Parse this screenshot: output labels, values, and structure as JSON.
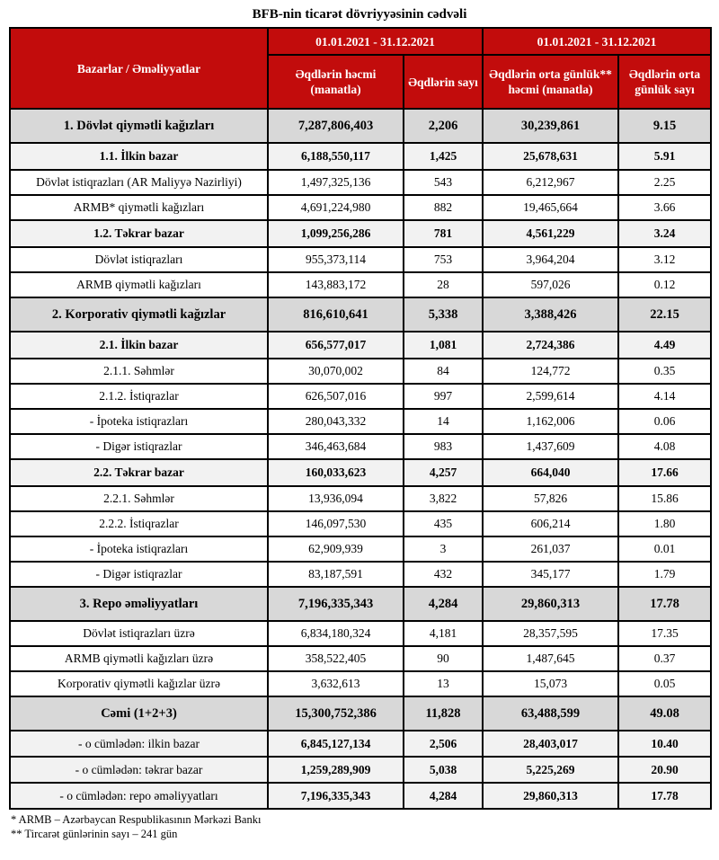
{
  "title": "BFB-nin ticarət dövriyyəsinin cədvəli",
  "colors": {
    "header_red": "#c20c0c",
    "section_row_gray": "#d8d8d8",
    "sub_row_gray": "#f2f2f2",
    "border_black": "#000000"
  },
  "table": {
    "header": {
      "col1": "Bazarlar / Əməliyyatlar",
      "period1": "01.01.2021 - 31.12.2021",
      "period2": "01.01.2021 - 31.12.2021",
      "subcols": [
        "Əqdlərin həcmi (manatla)",
        "Əqdlərin sayı",
        "Əqdlərin orta günlük** həcmi (manatla)",
        "Əqdlərin orta günlük sayı"
      ]
    },
    "rows": [
      {
        "label": "1. Dövlət qiymətli kağızları",
        "level": "section",
        "values": [
          "7,287,806,403",
          "2,206",
          "30,239,861",
          "9.15"
        ]
      },
      {
        "label": "1.1. İlkin bazar",
        "level": "sub",
        "values": [
          "6,188,550,117",
          "1,425",
          "25,678,631",
          "5.91"
        ]
      },
      {
        "label": "Dövlət istiqrazları (AR Maliyyə Nazirliyi)",
        "level": "detail",
        "values": [
          "1,497,325,136",
          "543",
          "6,212,967",
          "2.25"
        ]
      },
      {
        "label": "ARMB* qiymətli kağızları",
        "level": "detail",
        "values": [
          "4,691,224,980",
          "882",
          "19,465,664",
          "3.66"
        ]
      },
      {
        "label": "1.2. Təkrar bazar",
        "level": "sub",
        "values": [
          "1,099,256,286",
          "781",
          "4,561,229",
          "3.24"
        ]
      },
      {
        "label": "Dövlət istiqrazları",
        "level": "detail",
        "values": [
          "955,373,114",
          "753",
          "3,964,204",
          "3.12"
        ]
      },
      {
        "label": "ARMB qiymətli kağızları",
        "level": "detail",
        "values": [
          "143,883,172",
          "28",
          "597,026",
          "0.12"
        ]
      },
      {
        "label": "2. Korporativ qiymətli kağızlar",
        "level": "section",
        "values": [
          "816,610,641",
          "5,338",
          "3,388,426",
          "22.15"
        ]
      },
      {
        "label": "2.1. İlkin bazar",
        "level": "sub",
        "values": [
          "656,577,017",
          "1,081",
          "2,724,386",
          "4.49"
        ]
      },
      {
        "label": "2.1.1. Səhmlər",
        "level": "detail",
        "values": [
          "30,070,002",
          "84",
          "124,772",
          "0.35"
        ]
      },
      {
        "label": "2.1.2. İstiqrazlar",
        "level": "detail",
        "values": [
          "626,507,016",
          "997",
          "2,599,614",
          "4.14"
        ]
      },
      {
        "label": "- İpoteka istiqrazları",
        "level": "detail",
        "values": [
          "280,043,332",
          "14",
          "1,162,006",
          "0.06"
        ]
      },
      {
        "label": "- Digər istiqrazlar",
        "level": "detail",
        "values": [
          "346,463,684",
          "983",
          "1,437,609",
          "4.08"
        ]
      },
      {
        "label": "2.2. Təkrar bazar",
        "level": "sub",
        "values": [
          "160,033,623",
          "4,257",
          "664,040",
          "17.66"
        ]
      },
      {
        "label": "2.2.1. Səhmlər",
        "level": "detail",
        "values": [
          "13,936,094",
          "3,822",
          "57,826",
          "15.86"
        ]
      },
      {
        "label": "2.2.2. İstiqrazlar",
        "level": "detail",
        "values": [
          "146,097,530",
          "435",
          "606,214",
          "1.80"
        ]
      },
      {
        "label": "- İpoteka istiqrazları",
        "level": "detail",
        "values": [
          "62,909,939",
          "3",
          "261,037",
          "0.01"
        ]
      },
      {
        "label": "- Digər istiqrazlar",
        "level": "detail",
        "values": [
          "83,187,591",
          "432",
          "345,177",
          "1.79"
        ]
      },
      {
        "label": "3. Repo əməliyyatları",
        "level": "section",
        "values": [
          "7,196,335,343",
          "4,284",
          "29,860,313",
          "17.78"
        ]
      },
      {
        "label": "Dövlət istiqrazları üzrə",
        "level": "detail",
        "values": [
          "6,834,180,324",
          "4,181",
          "28,357,595",
          "17.35"
        ]
      },
      {
        "label": "ARMB qiymətli kağızları üzrə",
        "level": "detail",
        "values": [
          "358,522,405",
          "90",
          "1,487,645",
          "0.37"
        ]
      },
      {
        "label": "Korporativ qiymətli kağızlar üzrə",
        "level": "detail",
        "values": [
          "3,632,613",
          "13",
          "15,073",
          "0.05"
        ]
      },
      {
        "label": "Cəmi (1+2+3)",
        "level": "section",
        "values": [
          "15,300,752,386",
          "11,828",
          "63,488,599",
          "49.08"
        ]
      },
      {
        "label": "- o cümlədən: ilkin bazar",
        "level": "including",
        "values": [
          "6,845,127,134",
          "2,506",
          "28,403,017",
          "10.40"
        ]
      },
      {
        "label": "- o cümlədən: təkrar bazar",
        "level": "including",
        "values": [
          "1,259,289,909",
          "5,038",
          "5,225,269",
          "20.90"
        ]
      },
      {
        "label": "- o cümlədən: repo əməliyyatları",
        "level": "including",
        "values": [
          "7,196,335,343",
          "4,284",
          "29,860,313",
          "17.78"
        ]
      }
    ]
  },
  "footnotes": [
    "* ARMB – Azərbaycan Respublikasının Mərkəzi Bankı",
    "** Tircarət günlərinin sayı – 241 gün"
  ]
}
